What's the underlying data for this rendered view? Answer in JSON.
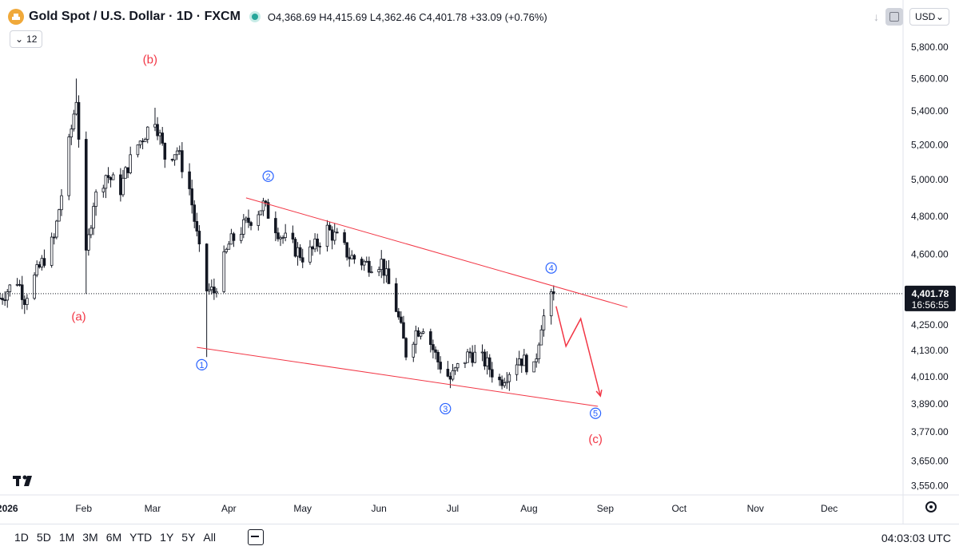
{
  "header": {
    "title": "Gold Spot / U.S. Dollar · 1D · FXCM",
    "ohlc": "O4,368.69 H4,415.69 L4,362.46 C4,401.78 +33.09 (+0.76%)",
    "indicators_count": "12",
    "currency": "USD",
    "logo": "TV"
  },
  "bottom": {
    "timeframes": [
      "1D",
      "5D",
      "1M",
      "3M",
      "6M",
      "YTD",
      "1Y",
      "5Y",
      "All"
    ],
    "clock": "04:03:03 UTC"
  },
  "colors": {
    "up": "#131722",
    "down": "#131722",
    "annotation_red": "#f23645",
    "wave_blue": "#2962ff",
    "last_price_bg": "#131722"
  },
  "chart_data": {
    "type": "candlestick",
    "scale": "log",
    "ylim": [
      3520,
      5900
    ],
    "y_ticks": [
      5800,
      5600,
      5400,
      5200,
      5000,
      4800,
      4600,
      4250,
      4130,
      4010,
      3890,
      3770,
      3650,
      3550
    ],
    "y_tick_labels": [
      "5,800.00",
      "5,600.00",
      "5,400.00",
      "5,200.00",
      "5,000.00",
      "4,800.00",
      "4,600.00",
      "4,250.00",
      "4,130.00",
      "4,010.00",
      "3,890.00",
      "3,770.00",
      "3,650.00",
      "3,550.00"
    ],
    "x_range": [
      "2025-12-29",
      "2026-12-31"
    ],
    "x_ticks": [
      "2026-01-01",
      "2026-02-01",
      "2026-03-01",
      "2026-04-01",
      "2026-05-01",
      "2026-06-01",
      "2026-07-01",
      "2026-08-01",
      "2026-09-01",
      "2026-10-01",
      "2026-11-01",
      "2026-12-01"
    ],
    "x_tick_labels": [
      "2026",
      "Feb",
      "Mar",
      "Apr",
      "May",
      "Jun",
      "Jul",
      "Aug",
      "Sep",
      "Oct",
      "Nov",
      "Dec"
    ],
    "last_price": "4,401.78",
    "countdown": "16:56:55",
    "last_price_value": 4401.78,
    "anchors": [
      [
        "2025-12-29",
        4380
      ],
      [
        "2026-01-05",
        4470
      ],
      [
        "2026-01-08",
        4380
      ],
      [
        "2026-01-14",
        4530
      ],
      [
        "2026-01-20",
        4680
      ],
      [
        "2026-01-23",
        4920
      ],
      [
        "2026-01-29",
        5480
      ],
      [
        "2026-02-02",
        4580
      ],
      [
        "2026-02-05",
        4880
      ],
      [
        "2026-02-10",
        5030
      ],
      [
        "2026-02-16",
        4950
      ],
      [
        "2026-02-19",
        5080
      ],
      [
        "2026-02-23",
        5200
      ],
      [
        "2026-03-02",
        5360
      ],
      [
        "2026-03-06",
        5130
      ],
      [
        "2026-03-11",
        5170
      ],
      [
        "2026-03-16",
        4950
      ],
      [
        "2026-03-20",
        4610
      ],
      [
        "2026-03-23",
        4420
      ],
      [
        "2026-03-26",
        4410
      ],
      [
        "2026-04-01",
        4650
      ],
      [
        "2026-04-08",
        4760
      ],
      [
        "2026-04-15",
        4860
      ],
      [
        "2026-04-22",
        4700
      ],
      [
        "2026-05-01",
        4590
      ],
      [
        "2026-05-05",
        4620
      ],
      [
        "2026-05-11",
        4730
      ],
      [
        "2026-05-15",
        4680
      ],
      [
        "2026-05-20",
        4590
      ],
      [
        "2026-05-27",
        4550
      ],
      [
        "2026-06-02",
        4560
      ],
      [
        "2026-06-08",
        4330
      ],
      [
        "2026-06-12",
        4120
      ],
      [
        "2026-06-16",
        4220
      ],
      [
        "2026-06-19",
        4250
      ],
      [
        "2026-06-25",
        4080
      ],
      [
        "2026-06-30",
        4000
      ],
      [
        "2026-07-03",
        4050
      ],
      [
        "2026-07-08",
        4120
      ],
      [
        "2026-07-14",
        4080
      ],
      [
        "2026-07-20",
        3990
      ],
      [
        "2026-07-24",
        4040
      ],
      [
        "2026-07-28",
        4100
      ],
      [
        "2026-08-03",
        4040
      ],
      [
        "2026-08-06",
        4260
      ],
      [
        "2026-08-11",
        4401.78
      ]
    ],
    "annotations": [
      {
        "label": "(a)",
        "date": "2026-01-30",
        "price": 4290,
        "style": "red"
      },
      {
        "label": "(b)",
        "date": "2026-02-28",
        "price": 5720,
        "style": "red"
      },
      {
        "label": "(c)",
        "date": "2026-08-28",
        "price": 3740,
        "style": "red"
      },
      {
        "label": "1",
        "date": "2026-03-21",
        "price": 4065,
        "style": "circle"
      },
      {
        "label": "2",
        "date": "2026-04-17",
        "price": 5020,
        "style": "circle"
      },
      {
        "label": "3",
        "date": "2026-06-28",
        "price": 3870,
        "style": "circle"
      },
      {
        "label": "4",
        "date": "2026-08-10",
        "price": 4530,
        "style": "circle"
      },
      {
        "label": "5",
        "date": "2026-08-28",
        "price": 3850,
        "style": "circle"
      }
    ],
    "trendlines": [
      {
        "from": [
          "2026-04-08",
          4900
        ],
        "to": [
          "2026-09-10",
          4335
        ]
      },
      {
        "from": [
          "2026-03-19",
          4145
        ],
        "to": [
          "2026-08-29",
          3880
        ]
      }
    ],
    "projection": [
      [
        "2026-08-12",
        4340
      ],
      [
        "2026-08-16",
        4150
      ],
      [
        "2026-08-22",
        4280
      ],
      [
        "2026-08-30",
        3925
      ]
    ]
  }
}
